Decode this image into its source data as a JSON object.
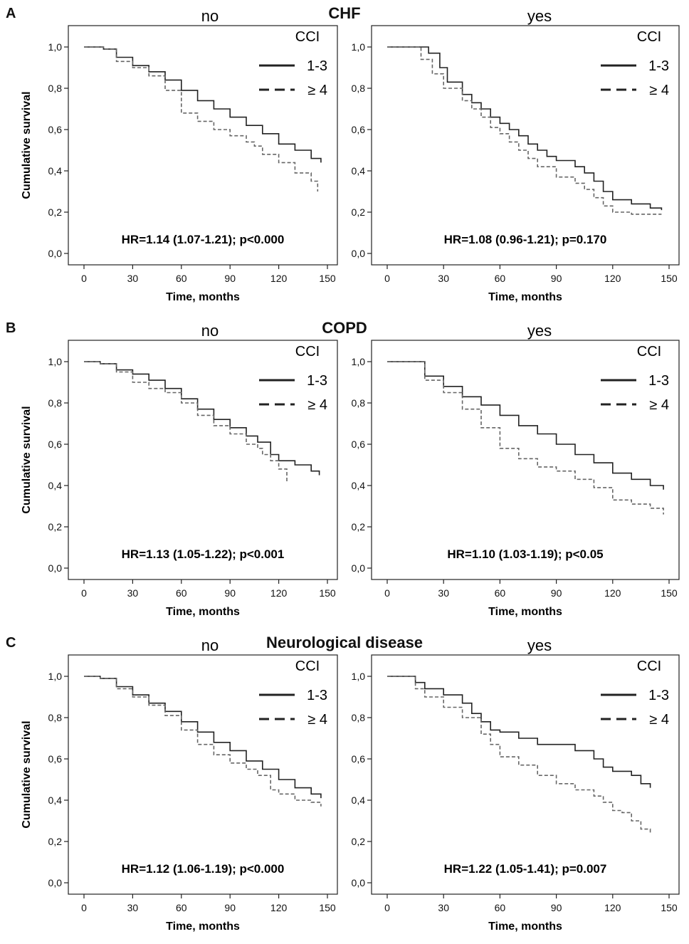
{
  "legend": {
    "title": "CCI",
    "series": [
      "1-3",
      "≥ 4"
    ]
  },
  "axis": {
    "ylabel": "Cumulative survival",
    "xlabel": "Time, months"
  },
  "chart_data": [
    {
      "type": "line",
      "row": "A",
      "group": "CHF",
      "subgroup": "no",
      "annotation": "HR=1.14 (1.07-1.21); p<0.000",
      "xlabel": "Time, months",
      "ylabel": "Cumulative survival",
      "xlim": [
        0,
        150
      ],
      "ylim": [
        0,
        1
      ],
      "xticks": [
        0,
        30,
        60,
        90,
        120,
        150
      ],
      "yticks": [
        "0,0",
        "0,2",
        "0,4",
        "0,6",
        "0,8",
        "1,0"
      ],
      "series": [
        {
          "name": "1-3",
          "style": "solid",
          "x": [
            0,
            12,
            20,
            30,
            40,
            50,
            60,
            70,
            80,
            90,
            100,
            110,
            120,
            130,
            140,
            146
          ],
          "y": [
            1.0,
            0.99,
            0.95,
            0.91,
            0.88,
            0.84,
            0.79,
            0.74,
            0.7,
            0.66,
            0.62,
            0.58,
            0.53,
            0.5,
            0.46,
            0.44
          ]
        },
        {
          "name": "≥ 4",
          "style": "dashed",
          "x": [
            0,
            12,
            20,
            30,
            40,
            50,
            60,
            70,
            80,
            90,
            100,
            105,
            110,
            120,
            130,
            140,
            144
          ],
          "y": [
            1.0,
            0.99,
            0.93,
            0.9,
            0.86,
            0.79,
            0.68,
            0.64,
            0.6,
            0.57,
            0.54,
            0.52,
            0.48,
            0.44,
            0.39,
            0.35,
            0.3
          ]
        }
      ]
    },
    {
      "type": "line",
      "row": "A",
      "group": "CHF",
      "subgroup": "yes",
      "annotation": "HR=1.08 (0.96-1.21); p=0.170",
      "xlabel": "Time, months",
      "ylabel": "",
      "xlim": [
        0,
        150
      ],
      "ylim": [
        0,
        1
      ],
      "xticks": [
        0,
        30,
        60,
        90,
        120,
        150
      ],
      "yticks": [
        "0,0",
        "0,2",
        "0,4",
        "0,6",
        "0,8",
        "1,0"
      ],
      "series": [
        {
          "name": "1-3",
          "style": "solid",
          "x": [
            0,
            18,
            22,
            28,
            32,
            40,
            45,
            50,
            55,
            60,
            65,
            70,
            75,
            80,
            85,
            90,
            100,
            105,
            110,
            115,
            120,
            130,
            140,
            146
          ],
          "y": [
            1.0,
            1.0,
            0.97,
            0.9,
            0.83,
            0.77,
            0.73,
            0.7,
            0.66,
            0.63,
            0.6,
            0.57,
            0.53,
            0.5,
            0.47,
            0.45,
            0.42,
            0.39,
            0.35,
            0.3,
            0.26,
            0.24,
            0.22,
            0.21
          ]
        },
        {
          "name": "≥ 4",
          "style": "dashed",
          "x": [
            0,
            12,
            18,
            24,
            30,
            40,
            45,
            50,
            55,
            60,
            65,
            70,
            75,
            80,
            90,
            100,
            105,
            110,
            115,
            120,
            130,
            146
          ],
          "y": [
            1.0,
            1.0,
            0.94,
            0.87,
            0.8,
            0.74,
            0.7,
            0.66,
            0.61,
            0.58,
            0.54,
            0.5,
            0.46,
            0.42,
            0.37,
            0.34,
            0.31,
            0.27,
            0.23,
            0.2,
            0.19,
            0.19
          ]
        }
      ]
    },
    {
      "type": "line",
      "row": "B",
      "group": "COPD",
      "subgroup": "no",
      "annotation": "HR=1.13 (1.05-1.22); p<0.001",
      "xlabel": "Time, months",
      "ylabel": "Cumulative survival",
      "xlim": [
        0,
        150
      ],
      "ylim": [
        0,
        1
      ],
      "xticks": [
        0,
        30,
        60,
        90,
        120,
        150
      ],
      "yticks": [
        "0,0",
        "0,2",
        "0,4",
        "0,6",
        "0,8",
        "1,0"
      ],
      "series": [
        {
          "name": "1-3",
          "style": "solid",
          "x": [
            0,
            10,
            20,
            30,
            40,
            50,
            60,
            70,
            80,
            90,
            100,
            107,
            115,
            120,
            130,
            140,
            145
          ],
          "y": [
            1.0,
            0.99,
            0.96,
            0.94,
            0.91,
            0.87,
            0.82,
            0.77,
            0.72,
            0.68,
            0.64,
            0.61,
            0.55,
            0.52,
            0.5,
            0.47,
            0.45
          ]
        },
        {
          "name": "≥ 4",
          "style": "dashed",
          "x": [
            0,
            10,
            20,
            30,
            40,
            50,
            60,
            70,
            80,
            90,
            100,
            107,
            110,
            115,
            120,
            125
          ],
          "y": [
            1.0,
            0.99,
            0.95,
            0.9,
            0.87,
            0.85,
            0.8,
            0.74,
            0.69,
            0.65,
            0.6,
            0.58,
            0.55,
            0.52,
            0.48,
            0.42
          ]
        }
      ]
    },
    {
      "type": "line",
      "row": "B",
      "group": "COPD",
      "subgroup": "yes",
      "annotation": "HR=1.10 (1.03-1.19); p<0.05",
      "xlabel": "Time, months",
      "ylabel": "",
      "xlim": [
        0,
        150
      ],
      "ylim": [
        0,
        1
      ],
      "xticks": [
        0,
        30,
        60,
        90,
        120,
        150
      ],
      "yticks": [
        "0,0",
        "0,2",
        "0,4",
        "0,6",
        "0,8",
        "1,0"
      ],
      "series": [
        {
          "name": "1-3",
          "style": "solid",
          "x": [
            0,
            10,
            20,
            30,
            40,
            50,
            60,
            70,
            80,
            90,
            100,
            110,
            120,
            130,
            140,
            147
          ],
          "y": [
            1.0,
            1.0,
            0.93,
            0.88,
            0.83,
            0.79,
            0.74,
            0.69,
            0.65,
            0.6,
            0.55,
            0.51,
            0.46,
            0.43,
            0.4,
            0.38
          ]
        },
        {
          "name": "≥ 4",
          "style": "dashed",
          "x": [
            0,
            10,
            20,
            30,
            40,
            50,
            60,
            70,
            80,
            90,
            100,
            110,
            120,
            130,
            140,
            147
          ],
          "y": [
            1.0,
            1.0,
            0.91,
            0.85,
            0.77,
            0.68,
            0.58,
            0.53,
            0.49,
            0.47,
            0.43,
            0.39,
            0.33,
            0.31,
            0.29,
            0.26
          ]
        }
      ]
    },
    {
      "type": "line",
      "row": "C",
      "group": "Neurological disease",
      "subgroup": "no",
      "annotation": "HR=1.12 (1.06-1.19); p<0.000",
      "xlabel": "Time, months",
      "ylabel": "Cumulative survival",
      "xlim": [
        0,
        150
      ],
      "ylim": [
        0,
        1
      ],
      "xticks": [
        0,
        30,
        60,
        90,
        120,
        150
      ],
      "yticks": [
        "0,0",
        "0,2",
        "0,4",
        "0,6",
        "0,8",
        "1,0"
      ],
      "series": [
        {
          "name": "1-3",
          "style": "solid",
          "x": [
            0,
            10,
            20,
            30,
            40,
            50,
            60,
            70,
            80,
            90,
            100,
            110,
            120,
            130,
            140,
            146
          ],
          "y": [
            1.0,
            0.99,
            0.95,
            0.91,
            0.87,
            0.83,
            0.78,
            0.73,
            0.68,
            0.64,
            0.59,
            0.55,
            0.5,
            0.46,
            0.43,
            0.41
          ]
        },
        {
          "name": "≥ 4",
          "style": "dashed",
          "x": [
            0,
            10,
            20,
            30,
            40,
            50,
            60,
            70,
            80,
            90,
            100,
            107,
            115,
            120,
            130,
            140,
            146
          ],
          "y": [
            1.0,
            0.99,
            0.94,
            0.9,
            0.86,
            0.81,
            0.74,
            0.67,
            0.62,
            0.58,
            0.55,
            0.52,
            0.45,
            0.43,
            0.4,
            0.39,
            0.37
          ]
        }
      ]
    },
    {
      "type": "line",
      "row": "C",
      "group": "Neurological disease",
      "subgroup": "yes",
      "annotation": "HR=1.22 (1.05-1.41); p=0.007",
      "xlabel": "Time, months",
      "ylabel": "",
      "xlim": [
        0,
        150
      ],
      "ylim": [
        0,
        1
      ],
      "xticks": [
        0,
        30,
        60,
        90,
        120,
        150
      ],
      "yticks": [
        "0,0",
        "0,2",
        "0,4",
        "0,6",
        "0,8",
        "1,0"
      ],
      "series": [
        {
          "name": "1-3",
          "style": "solid",
          "x": [
            0,
            10,
            15,
            20,
            30,
            40,
            45,
            50,
            55,
            60,
            70,
            80,
            90,
            100,
            110,
            115,
            120,
            125,
            130,
            135,
            140
          ],
          "y": [
            1.0,
            1.0,
            0.97,
            0.94,
            0.91,
            0.87,
            0.82,
            0.78,
            0.74,
            0.73,
            0.7,
            0.67,
            0.67,
            0.64,
            0.6,
            0.56,
            0.54,
            0.54,
            0.52,
            0.48,
            0.46
          ]
        },
        {
          "name": "≥ 4",
          "style": "dashed",
          "x": [
            0,
            10,
            15,
            20,
            30,
            40,
            50,
            55,
            60,
            70,
            80,
            90,
            100,
            110,
            115,
            120,
            125,
            130,
            135,
            140
          ],
          "y": [
            1.0,
            1.0,
            0.94,
            0.9,
            0.85,
            0.8,
            0.72,
            0.67,
            0.61,
            0.57,
            0.52,
            0.48,
            0.45,
            0.42,
            0.39,
            0.35,
            0.34,
            0.3,
            0.26,
            0.24
          ]
        }
      ]
    }
  ],
  "rows": [
    {
      "letter": "A",
      "group_title": "CHF"
    },
    {
      "letter": "B",
      "group_title": "COPD"
    },
    {
      "letter": "C",
      "group_title": "Neurological disease"
    }
  ]
}
